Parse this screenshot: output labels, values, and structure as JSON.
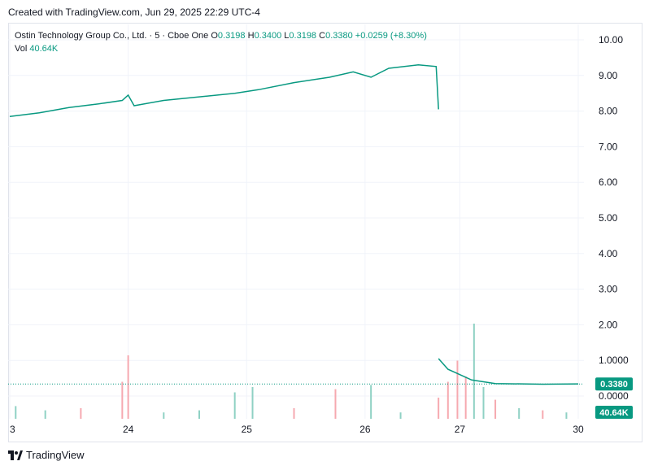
{
  "header": {
    "created_text": "Created with TradingView.com, Jun 29, 2025 22:29 UTC-4"
  },
  "legend": {
    "symbol": "Ostin Technology Group Co., Ltd. · 5 · Cboe One",
    "o_label": "O",
    "o_value": "0.3198",
    "h_label": "H",
    "h_value": "0.3400",
    "l_label": "L",
    "l_value": "0.3198",
    "c_label": "C",
    "c_value": "0.3380",
    "change": "+0.0259 (+8.30%)",
    "vol_label": "Vol",
    "vol_value": "40.64K"
  },
  "footer": {
    "brand": "TradingView"
  },
  "colors": {
    "up": "#089981",
    "down": "#f23645",
    "price_line": "#089981",
    "grid": "#f0f3fa"
  },
  "chart_data": {
    "type": "candlestick",
    "price_axis": {
      "ticks": [
        10.0,
        9.0,
        8.0,
        7.0,
        6.0,
        5.0,
        4.0,
        3.0,
        2.0,
        1.0,
        0.0
      ],
      "tick_labels": [
        "10.00",
        "9.00",
        "8.00",
        "7.00",
        "6.00",
        "5.00",
        "4.00",
        "3.00",
        "2.00",
        "1.0000",
        "0.0000"
      ]
    },
    "time_axis": {
      "labels": [
        "3",
        "24",
        "25",
        "26",
        "27",
        "30"
      ],
      "positions": [
        0,
        1,
        2,
        3,
        3.8,
        4.8
      ]
    },
    "last_price": {
      "value": 0.338,
      "label": "0.3380"
    },
    "last_volume": {
      "label": "40.64K"
    },
    "price_path": [
      [
        0,
        7.85
      ],
      [
        0.25,
        7.95
      ],
      [
        0.5,
        8.1
      ],
      [
        0.75,
        8.2
      ],
      [
        0.95,
        8.3
      ],
      [
        1.0,
        8.45
      ],
      [
        1.05,
        8.15
      ],
      [
        1.3,
        8.3
      ],
      [
        1.6,
        8.4
      ],
      [
        1.9,
        8.5
      ],
      [
        2.1,
        8.6
      ],
      [
        2.4,
        8.8
      ],
      [
        2.7,
        8.95
      ],
      [
        2.9,
        9.1
      ],
      [
        3.05,
        8.95
      ],
      [
        3.2,
        9.2
      ],
      [
        3.45,
        9.3
      ],
      [
        3.6,
        9.25
      ],
      [
        3.62,
        8.05
      ]
    ],
    "price_path_2": [
      [
        3.62,
        1.05
      ],
      [
        3.7,
        0.75
      ],
      [
        3.8,
        0.6
      ],
      [
        3.9,
        0.45
      ],
      [
        4.1,
        0.35
      ],
      [
        4.5,
        0.33
      ],
      [
        4.8,
        0.34
      ]
    ],
    "volume_bars": [
      [
        0.05,
        0.12,
        "up"
      ],
      [
        0.3,
        0.08,
        "up"
      ],
      [
        0.6,
        0.1,
        "down"
      ],
      [
        0.95,
        0.35,
        "down"
      ],
      [
        1.0,
        0.6,
        "down"
      ],
      [
        1.3,
        0.06,
        "up"
      ],
      [
        1.6,
        0.08,
        "up"
      ],
      [
        1.9,
        0.25,
        "up"
      ],
      [
        2.05,
        0.3,
        "up"
      ],
      [
        2.4,
        0.1,
        "down"
      ],
      [
        2.75,
        0.28,
        "down"
      ],
      [
        3.05,
        0.32,
        "up"
      ],
      [
        3.3,
        0.06,
        "up"
      ],
      [
        3.62,
        0.2,
        "down"
      ],
      [
        3.7,
        0.35,
        "down"
      ],
      [
        3.78,
        0.55,
        "down"
      ],
      [
        3.85,
        0.4,
        "down"
      ],
      [
        3.92,
        0.9,
        "up"
      ],
      [
        4.0,
        0.3,
        "up"
      ],
      [
        4.1,
        0.18,
        "down"
      ],
      [
        4.3,
        0.1,
        "up"
      ],
      [
        4.5,
        0.08,
        "down"
      ],
      [
        4.7,
        0.06,
        "up"
      ]
    ]
  }
}
